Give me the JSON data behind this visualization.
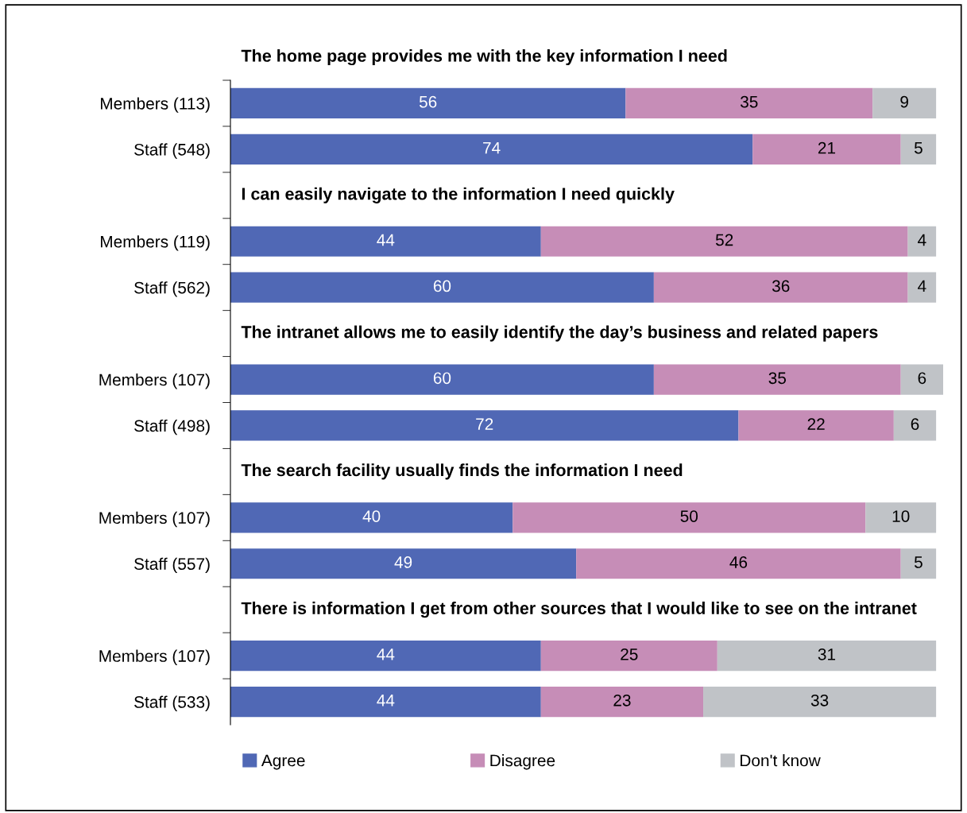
{
  "chart_data": {
    "type": "bar",
    "orientation": "horizontal",
    "stacked": true,
    "data_labels": true,
    "legend": "bottom",
    "grid": false,
    "tick_labels": "y",
    "categories": [
      null,
      "Members (113)",
      "Staff (548)",
      null,
      "Members (119)",
      "Staff (562)",
      null,
      "Members (107)",
      "Staff (498)",
      null,
      "Members (107)",
      "Staff (557)",
      null,
      "Members (107)",
      "Staff (533)"
    ],
    "annotations": [
      "The home page provides me with the key information I need",
      "I can easily navigate to the information I need quickly",
      "The intranet allows me to easily identify the day’s business and related papers",
      "The search facility usually finds the information I need",
      "There is information I get from other sources that I would like to see on the intranet"
    ],
    "series": [
      {
        "name": "Agree",
        "color": "#5068b5",
        "values": [
          null,
          56,
          74,
          null,
          44,
          60,
          null,
          60,
          72,
          null,
          40,
          49,
          null,
          44,
          44
        ]
      },
      {
        "name": "Disagree",
        "color": "#c68db7",
        "values": [
          null,
          35,
          21,
          null,
          52,
          36,
          null,
          35,
          22,
          null,
          50,
          46,
          null,
          25,
          23
        ]
      },
      {
        "name": "Don't know",
        "color": "#c0c3c7",
        "values": [
          null,
          9,
          5,
          null,
          4,
          4,
          null,
          6,
          6,
          null,
          10,
          5,
          null,
          31,
          33
        ]
      }
    ]
  }
}
